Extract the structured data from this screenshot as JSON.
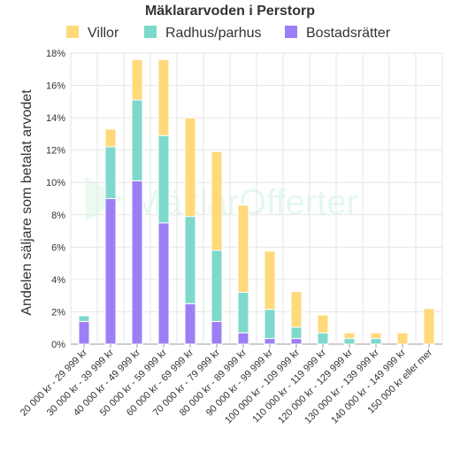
{
  "chart_data": {
    "type": "bar",
    "stacked": true,
    "title": "Mäklararvoden i Perstorp",
    "ylabel": "Andelen säljare som betalat arvodet",
    "xlabel": "",
    "ylim": [
      0,
      18
    ],
    "yticks": [
      "0%",
      "2%",
      "4%",
      "6%",
      "8%",
      "10%",
      "12%",
      "14%",
      "16%",
      "18%"
    ],
    "grid": true,
    "legend": "top",
    "categories": [
      "20 000 kr - 29 999 kr",
      "30 000 kr - 39 999 kr",
      "40 000 kr - 49 999 kr",
      "50 000 kr - 59 999 kr",
      "60 000 kr - 69 999 kr",
      "70 000 kr - 79 999 kr",
      "80 000 kr - 89 999 kr",
      "90 000 kr - 99 999 kr",
      "100 000 kr - 109 999 kr",
      "110 000 kr - 119 999 kr",
      "120 000 kr - 129 999 kr",
      "130 000 kr - 139 999 kr",
      "140 000 kr - 149 999 kr",
      "150 000 kr eller mer"
    ],
    "series": [
      {
        "name": "Bostadsrätter",
        "color": "#9d7ff5",
        "values": [
          1.4,
          9.0,
          10.1,
          7.5,
          2.5,
          1.4,
          0.7,
          0.35,
          0.35,
          0,
          0,
          0,
          0,
          0
        ]
      },
      {
        "name": "Radhus/parhus",
        "color": "#7dd9cc",
        "values": [
          0.35,
          3.2,
          5.0,
          5.4,
          5.4,
          4.4,
          2.5,
          1.8,
          0.7,
          0.7,
          0.35,
          0.35,
          0,
          0
        ]
      },
      {
        "name": "Villor",
        "color": "#ffd97a",
        "values": [
          0,
          1.1,
          2.5,
          4.7,
          6.1,
          6.1,
          5.4,
          3.6,
          2.2,
          1.1,
          0.35,
          0.35,
          0.7,
          2.2
        ]
      }
    ],
    "legend_order": [
      "Villor",
      "Radhus/parhus",
      "Bostadsrätter"
    ]
  },
  "watermark": {
    "text": "MäklarOfferter"
  }
}
